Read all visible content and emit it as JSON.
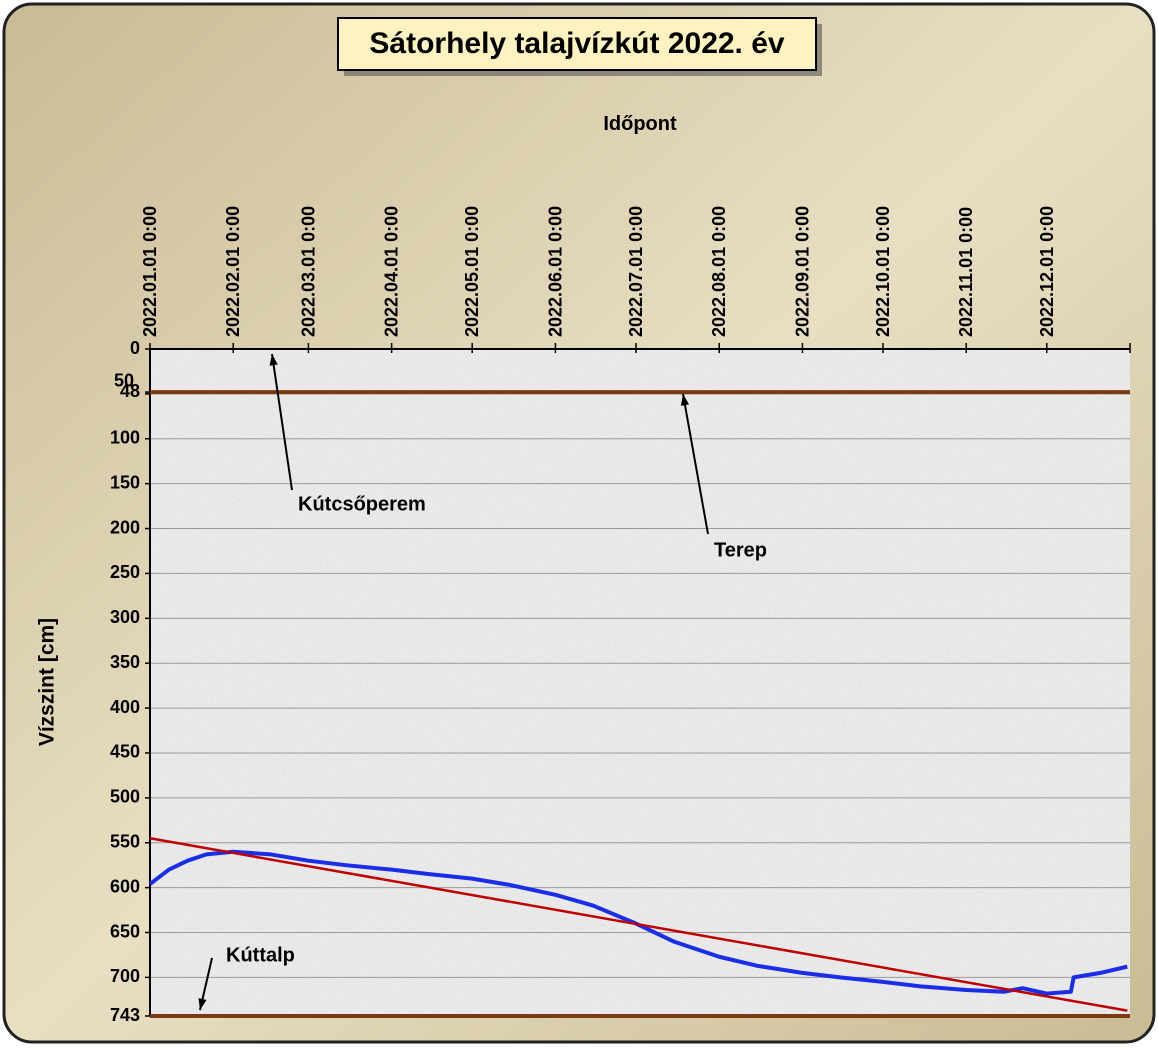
{
  "chart_data": {
    "type": "line",
    "title": "Sátorhely talajvízkút  2022. év",
    "xlabel": "Időpont",
    "ylabel": "Vízszint [cm]",
    "y_inverted": true,
    "grid": true,
    "ylim": [
      0,
      743
    ],
    "yticks": [
      0,
      48,
      50,
      100,
      150,
      200,
      250,
      300,
      350,
      400,
      450,
      500,
      550,
      600,
      650,
      700,
      743
    ],
    "xlim": [
      "2022.01.01 0:00",
      "2023.01.01 0:00"
    ],
    "xticks": [
      "2022.01.01 0:00",
      "2022.02.01 0:00",
      "2022.03.01 0:00",
      "2022.04.01 0:00",
      "2022.05.01 0:00",
      "2022.06.01 0:00",
      "2022.07.01 0:00",
      "2022.08.01 0:00",
      "2022.09.01 0:00",
      "2022.10.01 0:00",
      "2022.11.01 0:00",
      "2022.12.01 0:00"
    ],
    "series": [
      {
        "color": "#1a2ee8",
        "x": [
          "2022.01.01 0:00",
          "2022.01.08 0:00",
          "2022.01.15 0:00",
          "2022.01.22 0:00",
          "2022.02.01 0:00",
          "2022.02.15 0:00",
          "2022.03.01 0:00",
          "2022.03.15 0:00",
          "2022.04.01 0:00",
          "2022.04.15 0:00",
          "2022.05.01 0:00",
          "2022.05.15 0:00",
          "2022.06.01 0:00",
          "2022.06.15 0:00",
          "2022.07.01 0:00",
          "2022.07.15 0:00",
          "2022.08.01 0:00",
          "2022.08.15 0:00",
          "2022.09.01 0:00",
          "2022.09.15 0:00",
          "2022.10.01 0:00",
          "2022.10.15 0:00",
          "2022.11.01 0:00",
          "2022.11.15 0:00",
          "2022.11.22 0:00",
          "2022.12.01 0:00",
          "2022.12.10 0:00",
          "2022.12.11 0:00",
          "2022.12.21 0:00",
          "2022.12.31 0:00"
        ],
        "values": [
          596,
          580,
          570,
          563,
          560,
          563,
          570,
          575,
          580,
          585,
          590,
          597,
          608,
          620,
          640,
          660,
          677,
          687,
          695,
          700,
          705,
          710,
          714,
          716,
          712,
          718,
          716,
          700,
          695,
          688
        ]
      },
      {
        "color": "#c00000",
        "x": [
          "2022.01.01 0:00",
          "2022.12.31 0:00"
        ],
        "values": [
          545,
          737
        ]
      }
    ],
    "reference_lines": [
      {
        "value": 48,
        "color": "#7b3a10"
      },
      {
        "value": 743,
        "color": "#7b3a10"
      }
    ],
    "annotations": [
      "Kútcsőperem",
      "Terep",
      "Kúttalp"
    ]
  }
}
